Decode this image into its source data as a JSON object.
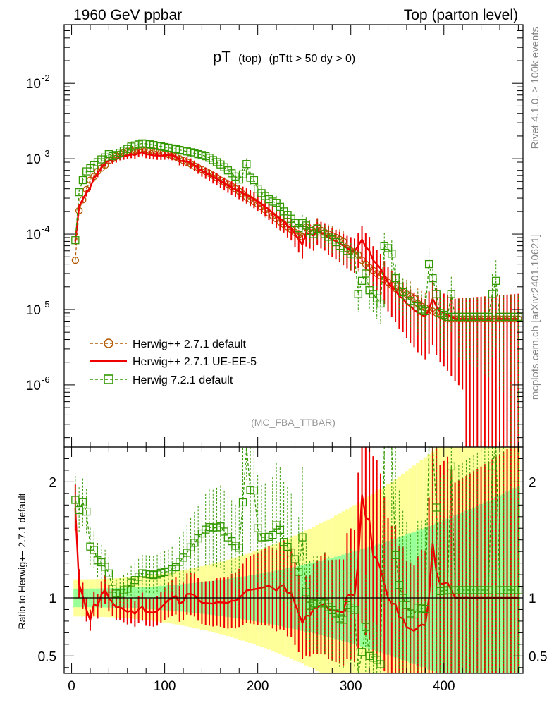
{
  "header": {
    "left_title": "1960 GeV ppbar",
    "right_title": "Top (parton level)",
    "plot_title_main": "pT",
    "plot_title_sub1": "(top)",
    "plot_title_sub2": "(pTtt > 50 dy > 0)",
    "side_label_1": "Rivet 4.1.0, ≥ 100k events",
    "side_label_2": "mcplots.cern.ch [arXiv:2401.10621]",
    "analysis_tag": "(MC_FBA_TTBAR)",
    "ratio_ylabel": "Ratio to Herwig++ 2.7.1 default"
  },
  "colors": {
    "herwig_default": "#b35900",
    "ueee5": "#ee0000",
    "herwig7": "#339900",
    "band_yellow": "#ffff99",
    "band_green": "#99ff99"
  },
  "chart_data": {
    "type": "line",
    "xlim": [
      -8,
      485
    ],
    "upper": {
      "yscale": "log",
      "ylim": [
        1.5e-07,
        0.06
      ],
      "ytick_labels": [
        "10^-6",
        "10^-5",
        "10^-4",
        "10^-3",
        "10^-2"
      ],
      "ytick_values": [
        1e-06,
        1e-05,
        0.0001,
        0.001,
        0.01
      ]
    },
    "lower": {
      "ylim": [
        0.35,
        2.3
      ],
      "ytick_labels": [
        "0.5",
        "1",
        "2"
      ],
      "ytick_values": [
        0.5,
        1,
        2
      ]
    },
    "xtick_labels": [
      "0",
      "100",
      "200",
      "300",
      "400"
    ],
    "xtick_values": [
      0,
      100,
      200,
      300,
      400
    ],
    "legend": {
      "placement": "lower-left",
      "entries": [
        "Herwig++ 2.7.1 default",
        "Herwig++ 2.7.1 UE-EE-5",
        "Herwig 7.2.1 default"
      ]
    },
    "x": [
      4,
      8,
      12,
      16,
      20,
      24,
      28,
      32,
      36,
      40,
      44,
      48,
      52,
      56,
      60,
      64,
      68,
      72,
      76,
      80,
      84,
      88,
      92,
      96,
      100,
      104,
      108,
      112,
      116,
      120,
      124,
      128,
      132,
      136,
      140,
      144,
      148,
      152,
      156,
      160,
      164,
      168,
      172,
      176,
      180,
      184,
      188,
      192,
      196,
      200,
      204,
      208,
      212,
      216,
      220,
      224,
      228,
      232,
      236,
      240,
      244,
      248,
      252,
      256,
      260,
      264,
      268,
      272,
      276,
      280,
      284,
      288,
      292,
      296,
      300,
      304,
      308,
      312,
      316,
      320,
      324,
      328,
      332,
      336,
      340,
      344,
      348,
      352,
      356,
      360,
      364,
      368,
      372,
      376,
      380,
      384,
      388,
      392,
      396,
      400,
      404,
      408,
      412,
      416,
      420,
      424,
      428,
      432,
      436,
      440,
      444,
      448,
      452,
      456,
      460,
      464,
      468,
      472,
      476,
      480
    ],
    "series": [
      {
        "name": "Herwig++ 2.7.1 default",
        "values": [
          4.5e-05,
          0.000205,
          0.000285,
          0.00039,
          0.00052,
          0.00058,
          0.00068,
          0.00075,
          0.00082,
          0.00095,
          0.001,
          0.00108,
          0.00115,
          0.0012,
          0.00125,
          0.00128,
          0.0013,
          0.00131,
          0.00132,
          0.00131,
          0.00129,
          0.00127,
          0.00124,
          0.0012,
          0.00117,
          0.00114,
          0.0011,
          0.00106,
          0.001,
          0.00095,
          0.0009,
          0.00085,
          0.0008,
          0.00076,
          0.00072,
          0.00068,
          0.00064,
          0.0006,
          0.00056,
          0.00052,
          0.00049,
          0.00046,
          0.00043,
          0.0004,
          0.00037,
          0.00034,
          0.00031,
          0.00029,
          0.00027,
          0.00025,
          0.00023,
          0.00021,
          0.00019,
          0.000175,
          0.00016,
          0.000145,
          0.000135,
          0.000125,
          0.000115,
          0.000105,
          9.8e-05,
          9.2e-05,
          0.000124,
          0.000118,
          0.000105,
          0.000125,
          0.000112,
          0.000105,
          0.0001,
          9.5e-05,
          9e-05,
          8.5e-05,
          8e-05,
          6.4e-05,
          6e-05,
          5.8e-05,
          5.3e-05,
          4.5e-05,
          4e-05,
          3.6e-05,
          3.3e-05,
          3e-05,
          2.8e-05,
          2.5e-05,
          2.3e-05,
          2.1e-05,
          1.9e-05,
          1.8e-05,
          1.7e-05,
          1.6e-05,
          1.5e-05,
          1.4e-05,
          1.2e-05,
          1.1e-05,
          1.05e-05,
          1e-05,
          9.5e-06,
          9e-06,
          8.5e-06,
          8e-06,
          7.5e-06,
          7.5e-06,
          7.5e-06,
          7.5e-06,
          7.5e-06,
          7.5e-06,
          7.5e-06,
          7.5e-06,
          7.5e-06,
          7.5e-06,
          7.5e-06,
          7.5e-06,
          7.5e-06,
          7.5e-06,
          7.5e-06,
          7.5e-06,
          7.5e-06,
          7.5e-06,
          7.5e-06,
          7.5e-06
        ]
      },
      {
        "name": "Herwig++ 2.7.1 UE-EE-5",
        "values": [
          8e-05,
          0.00023,
          0.00029,
          0.00035,
          0.00042,
          0.00055,
          0.00063,
          0.00077,
          0.00088,
          0.00095,
          0.00096,
          0.00099,
          0.00106,
          0.00108,
          0.0011,
          0.00114,
          0.00112,
          0.00118,
          0.00122,
          0.00115,
          0.00113,
          0.00111,
          0.0011,
          0.0011,
          0.00111,
          0.00112,
          0.0011,
          0.00108,
          0.00095,
          0.00092,
          0.00093,
          0.00088,
          0.00082,
          0.00075,
          0.00069,
          0.00065,
          0.00061,
          0.00057,
          0.00054,
          0.0005,
          0.00047,
          0.00044,
          0.00042,
          0.00039,
          0.00037,
          0.00035,
          0.00033,
          0.00031,
          0.00029,
          0.00027,
          0.00025,
          0.00023,
          0.00021,
          0.00019,
          0.00017,
          0.00016,
          0.00015,
          0.00013,
          0.00012,
          0.0001,
          8.5e-05,
          7.2e-05,
          0.000105,
          0.0001,
          9.5e-05,
          0.000115,
          0.000105,
          0.0001,
          9e-05,
          8.5e-05,
          8e-05,
          7.5e-05,
          7e-05,
          6.5e-05,
          6.2e-05,
          5.9e-05,
          7e-05,
          8.5e-05,
          6.8e-05,
          6e-05,
          4.5e-05,
          4e-05,
          3.5e-05,
          2.8e-05,
          2.3e-05,
          2e-05,
          1.8e-05,
          1.5e-05,
          1.4e-05,
          1.2e-05,
          1.1e-05,
          1e-05,
          9e-06,
          8.5e-06,
          8e-06,
          1e-05,
          1.4e-05,
          1.1e-05,
          9.5e-06,
          9e-06,
          8.5e-06,
          8e-06,
          7.5e-06,
          7.5e-06,
          7.5e-06,
          7.5e-06,
          7.5e-06,
          7.5e-06,
          7.5e-06,
          7.5e-06,
          7.5e-06,
          7.5e-06,
          7.5e-06,
          7.5e-06,
          7.5e-06,
          7.5e-06,
          7.5e-06,
          7.5e-06,
          7.5e-06,
          7.5e-06
        ]
      },
      {
        "name": "Herwig 7.2.1 default",
        "values": [
          8.3e-05,
          0.00036,
          0.00052,
          0.00068,
          0.00075,
          0.00082,
          0.0009,
          0.00098,
          0.00104,
          0.00115,
          0.00108,
          0.00112,
          0.0012,
          0.00128,
          0.00135,
          0.00145,
          0.0015,
          0.00155,
          0.0016,
          0.00158,
          0.00155,
          0.00152,
          0.00149,
          0.00146,
          0.00143,
          0.0014,
          0.00137,
          0.00134,
          0.00131,
          0.00128,
          0.00125,
          0.00122,
          0.00118,
          0.00115,
          0.00112,
          0.00108,
          0.00103,
          0.00096,
          0.0009,
          0.00084,
          0.00077,
          0.0007,
          0.00064,
          0.00058,
          0.00053,
          0.00062,
          0.00085,
          0.00056,
          0.00052,
          0.0004,
          0.00035,
          0.00032,
          0.00029,
          0.00027,
          0.00026,
          0.00023,
          0.0002,
          0.00018,
          0.00016,
          0.00014,
          0.00012,
          0.00014,
          0.00013,
          0.00011,
          0.0001,
          0.000118,
          0.000108,
          0.0001,
          9.2e-05,
          8.5e-05,
          7.8e-05,
          7e-05,
          6.5e-05,
          6e-05,
          5.5e-05,
          5.2e-05,
          1.6e-05,
          2.4e-05,
          3e-05,
          1.8e-05,
          1.6e-05,
          1.4e-05,
          1.2e-05,
          7e-05,
          6.5e-05,
          5.5e-05,
          2.6e-05,
          2e-05,
          1.7e-05,
          1.5e-05,
          1.3e-05,
          1.2e-05,
          1.1e-05,
          1e-05,
          9.5e-06,
          4e-05,
          2.6e-05,
          1.6e-05,
          9e-06,
          8.5e-06,
          8e-06,
          1.6e-05,
          8e-06,
          8e-06,
          8e-06,
          8e-06,
          8e-06,
          8e-06,
          8e-06,
          8e-06,
          8e-06,
          8e-06,
          1.6e-05,
          2.4e-05,
          8e-06,
          8e-06,
          8e-06,
          8e-06,
          8e-06,
          8e-06
        ]
      }
    ]
  }
}
